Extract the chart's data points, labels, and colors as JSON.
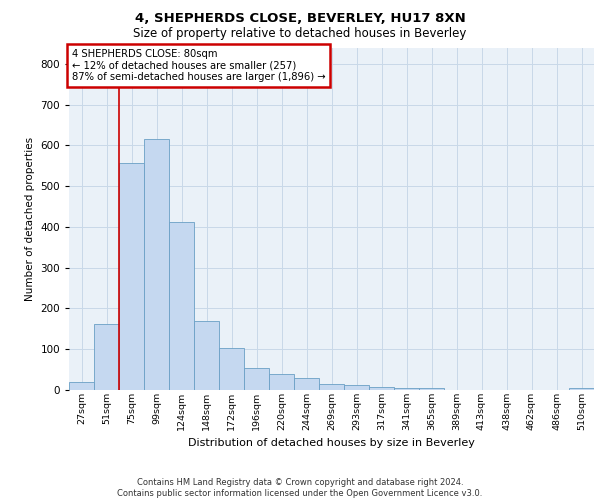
{
  "title1": "4, SHEPHERDS CLOSE, BEVERLEY, HU17 8XN",
  "title2": "Size of property relative to detached houses in Beverley",
  "xlabel": "Distribution of detached houses by size in Beverley",
  "ylabel": "Number of detached properties",
  "footer": "Contains HM Land Registry data © Crown copyright and database right 2024.\nContains public sector information licensed under the Open Government Licence v3.0.",
  "categories": [
    "27sqm",
    "51sqm",
    "75sqm",
    "99sqm",
    "124sqm",
    "148sqm",
    "172sqm",
    "196sqm",
    "220sqm",
    "244sqm",
    "269sqm",
    "293sqm",
    "317sqm",
    "341sqm",
    "365sqm",
    "389sqm",
    "413sqm",
    "438sqm",
    "462sqm",
    "486sqm",
    "510sqm"
  ],
  "values": [
    20,
    163,
    557,
    616,
    413,
    170,
    102,
    55,
    40,
    30,
    15,
    12,
    8,
    5,
    5,
    0,
    0,
    0,
    0,
    0,
    5
  ],
  "bar_color": "#c5d8f0",
  "bar_edge_color": "#6a9fc5",
  "property_line_x": 1.5,
  "annotation_text": "4 SHEPHERDS CLOSE: 80sqm\n← 12% of detached houses are smaller (257)\n87% of semi-detached houses are larger (1,896) →",
  "annotation_box_color": "#ffffff",
  "annotation_box_edge_color": "#cc0000",
  "property_line_color": "#cc0000",
  "ylim": [
    0,
    840
  ],
  "yticks": [
    0,
    100,
    200,
    300,
    400,
    500,
    600,
    700,
    800
  ],
  "grid_color": "#c8d8e8",
  "bg_color": "#eaf1f8"
}
